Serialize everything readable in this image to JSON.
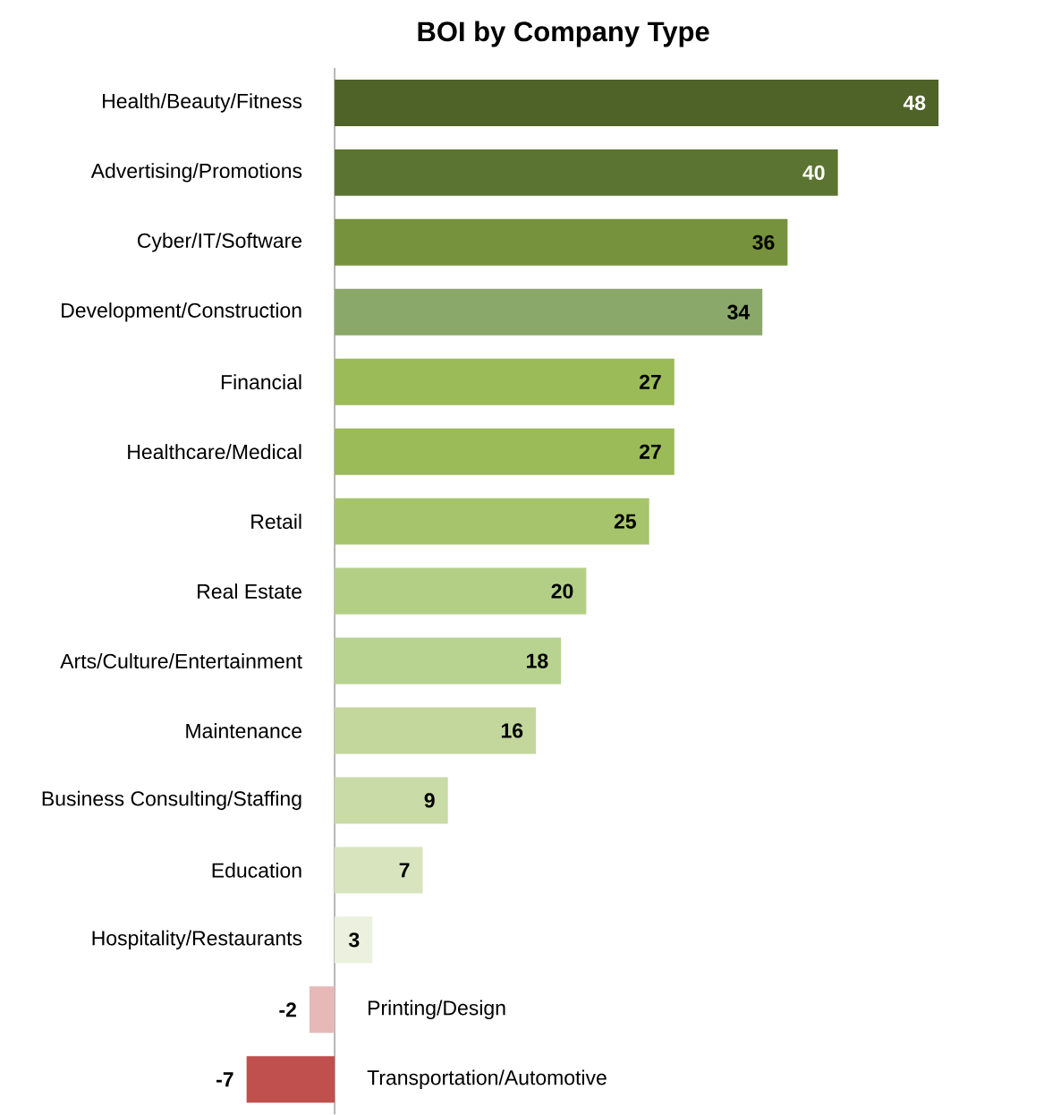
{
  "chart_data": {
    "type": "bar",
    "orientation": "horizontal",
    "title": "BOI by Company Type",
    "categories": [
      "Health/Beauty/Fitness",
      "Advertising/Promotions",
      "Cyber/IT/Software",
      "Development/Construction",
      "Financial",
      "Healthcare/Medical",
      "Retail",
      "Real Estate",
      "Arts/Culture/Entertainment",
      "Maintenance",
      "Business Consulting/Staffing",
      "Education",
      "Hospitality/Restaurants",
      "Printing/Design",
      "Transportation/Automotive"
    ],
    "values": [
      48,
      40,
      36,
      34,
      27,
      27,
      25,
      20,
      18,
      16,
      9,
      7,
      3,
      -2,
      -7
    ],
    "colors": [
      "#4f6228",
      "#5b7431",
      "#76923c",
      "#8aa86a",
      "#9bbb59",
      "#9bbb59",
      "#a6c46c",
      "#b3cf86",
      "#b8d28f",
      "#c3d69b",
      "#c9dba6",
      "#d7e4bd",
      "#ebf1de",
      "#e6b9b8",
      "#c0504d"
    ],
    "data_labels": true
  }
}
